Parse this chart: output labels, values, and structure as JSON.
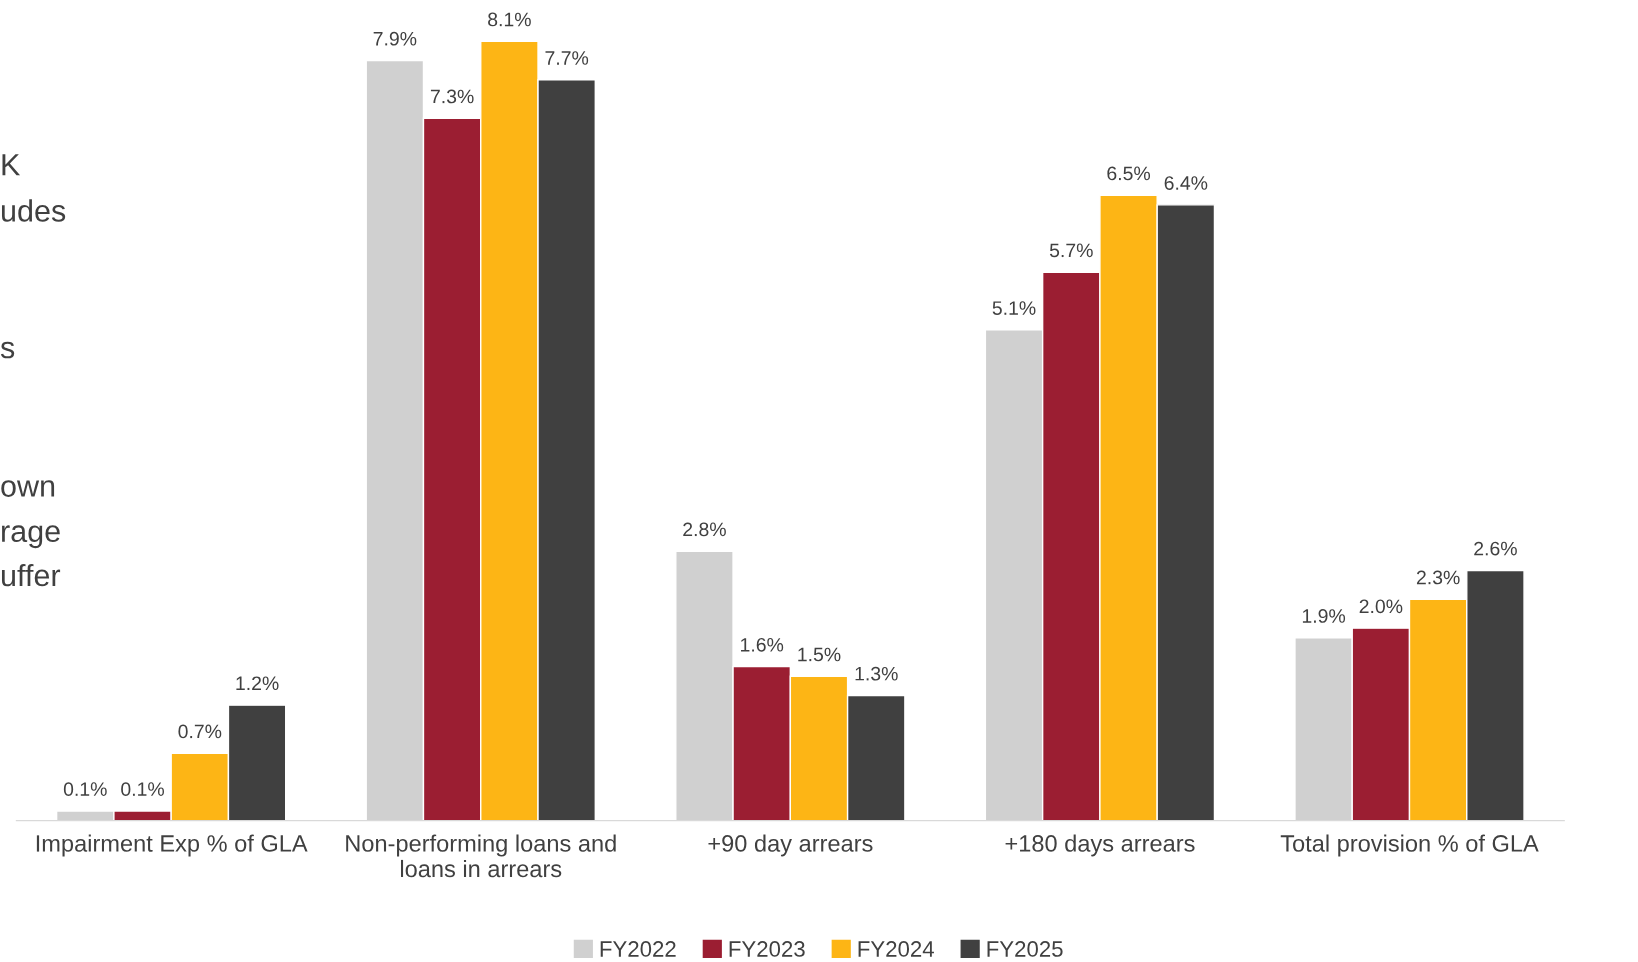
{
  "chart_data": {
    "type": "bar",
    "categories": [
      "Impairment Exp % of GLA",
      "Non-performing loans and\nloans in arrears",
      "+90 day arrears",
      "+180 days arrears",
      "Total provision % of GLA"
    ],
    "series": [
      {
        "name": "FY2022",
        "color": "#d0d0d0",
        "values": [
          0.1,
          7.9,
          2.8,
          5.1,
          1.9
        ],
        "value_labels": [
          "0.1%",
          "7.9%",
          "2.8%",
          "5.1%",
          "1.9%"
        ]
      },
      {
        "name": "FY2023",
        "color": "#9b1e32",
        "values": [
          0.1,
          7.3,
          1.6,
          5.7,
          2.0
        ],
        "value_labels": [
          "0.1%",
          "7.3%",
          "1.6%",
          "5.7%",
          "2.0%"
        ]
      },
      {
        "name": "FY2024",
        "color": "#fdb515",
        "values": [
          0.7,
          8.1,
          1.5,
          6.5,
          2.3
        ],
        "value_labels": [
          "0.7%",
          "8.1%",
          "1.5%",
          "6.5%",
          "2.3%"
        ]
      },
      {
        "name": "FY2025",
        "color": "#404040",
        "values": [
          1.2,
          7.7,
          1.3,
          6.4,
          2.6
        ],
        "value_labels": [
          "1.2%",
          "7.7%",
          "1.3%",
          "6.4%",
          "2.6%"
        ]
      }
    ],
    "annotations": [
      "K",
      "udes",
      "s",
      "own",
      "rage",
      "uffer"
    ],
    "legend": "bottom",
    "grid": false,
    "tick_labels": "x"
  }
}
